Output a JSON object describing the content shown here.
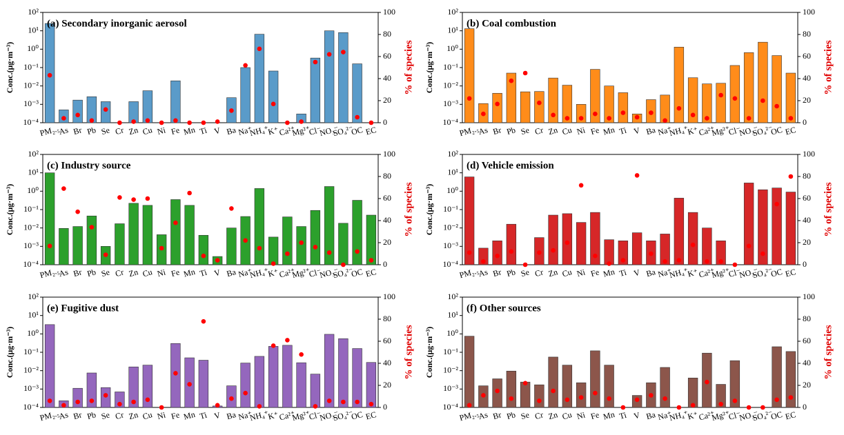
{
  "chart_data": [
    {
      "type": "bar",
      "title": "(a) Secondary inorganic aerosol",
      "y_label": "Conc.(μg·m⁻³)",
      "y2_label": "% of species",
      "log_scale": true,
      "color": "#5a9bc9",
      "dot_color": "#ff0000",
      "categories": [
        "PM₂.₅",
        "As",
        "Br",
        "Pb",
        "Se",
        "Cr",
        "Zn",
        "Cu",
        "Ni",
        "Fe",
        "Mn",
        "Ti",
        "V",
        "Ba",
        "Na⁺",
        "NH₄⁺",
        "K⁺",
        "Ca²⁺",
        "Mg²⁺",
        "Cl⁻",
        "NO₃⁻",
        "SO₄²⁻",
        "OC",
        "EC"
      ],
      "values": [
        25,
        0.0005,
        0.0017,
        0.0026,
        0.0014,
        null,
        0.0014,
        0.0055,
        null,
        0.019,
        null,
        null,
        null,
        0.0023,
        0.1,
        6.5,
        0.065,
        null,
        0.0003,
        0.33,
        10,
        8,
        0.16,
        null
      ],
      "values_y2": [
        43,
        4,
        7,
        2,
        12,
        0,
        1,
        2,
        0,
        2,
        0,
        0,
        1,
        11,
        52,
        67,
        17,
        0,
        1,
        55,
        62,
        64,
        5,
        0
      ],
      "ylim": [
        0.0001,
        100
      ],
      "yticks": [
        {
          "value": 0.0001,
          "label": "10⁻⁴"
        },
        {
          "value": 0.001,
          "label": "10⁻³"
        },
        {
          "value": 0.01,
          "label": "10⁻²"
        },
        {
          "value": 0.1,
          "label": "10⁻¹"
        },
        {
          "value": 1,
          "label": "10⁰"
        },
        {
          "value": 10,
          "label": "10¹"
        },
        {
          "value": 100,
          "label": "10²"
        }
      ],
      "y2lim": [
        0,
        100
      ],
      "y2ticks": [
        0,
        20,
        40,
        60,
        80,
        100
      ]
    },
    {
      "type": "bar",
      "title": "(b) Coal combustion",
      "y_label": "Conc.(μg·m⁻³)",
      "y2_label": "% of species",
      "log_scale": true,
      "color": "#ff8c1a",
      "dot_color": "#ff0000",
      "categories": [
        "PM₂.₅",
        "As",
        "Br",
        "Pb",
        "Se",
        "Cr",
        "Zn",
        "Cu",
        "Ni",
        "Fe",
        "Mn",
        "Ti",
        "V",
        "Ba",
        "Na⁺",
        "NH₄⁺",
        "K⁺",
        "Ca²⁺",
        "Mg²⁺",
        "Cl⁻",
        "NO₃⁻",
        "SO₄²⁻",
        "OC",
        "EC"
      ],
      "values": [
        13,
        0.0011,
        0.004,
        0.05,
        0.0048,
        0.005,
        0.027,
        0.011,
        0.001,
        0.08,
        0.01,
        0.0043,
        0.0003,
        0.0018,
        0.0032,
        1.3,
        0.028,
        0.013,
        0.014,
        0.13,
        0.65,
        2.4,
        0.45,
        0.05
      ],
      "values_y2": [
        22,
        8,
        17,
        38,
        45,
        18,
        7,
        4,
        4,
        8,
        4,
        9,
        5,
        9,
        2,
        13,
        7,
        4,
        25,
        22,
        4,
        20,
        15,
        4
      ],
      "ylim": [
        0.0001,
        100
      ],
      "yticks": [
        {
          "value": 0.0001,
          "label": "10⁻⁴"
        },
        {
          "value": 0.001,
          "label": "10⁻³"
        },
        {
          "value": 0.01,
          "label": "10⁻²"
        },
        {
          "value": 0.1,
          "label": "10⁻¹"
        },
        {
          "value": 1,
          "label": "10⁰"
        },
        {
          "value": 10,
          "label": "10¹"
        },
        {
          "value": 100,
          "label": "10²"
        }
      ],
      "y2lim": [
        0,
        100
      ],
      "y2ticks": [
        0,
        20,
        40,
        60,
        80,
        100
      ]
    },
    {
      "type": "bar",
      "title": "(c) Industry source",
      "y_label": "Conc.(μg·m⁻³)",
      "y2_label": "% of species",
      "log_scale": true,
      "color": "#2ca02c",
      "dot_color": "#ff0000",
      "categories": [
        "PM₂.₅",
        "As",
        "Br",
        "Pb",
        "Se",
        "Cr",
        "Zn",
        "Cu",
        "Ni",
        "Fe",
        "Mn",
        "Ti",
        "V",
        "Ba",
        "Na⁺",
        "NH₄⁺",
        "K⁺",
        "Ca²⁺",
        "Mg²⁺",
        "Cl⁻",
        "NO₃⁻",
        "SO₄²⁻",
        "OC",
        "EC"
      ],
      "values": [
        10,
        0.0095,
        0.012,
        0.045,
        0.001,
        0.017,
        0.22,
        0.17,
        0.0043,
        0.35,
        0.17,
        0.004,
        0.00028,
        0.01,
        0.042,
        1.4,
        0.0032,
        0.04,
        0.012,
        0.09,
        1.8,
        0.018,
        0.32,
        0.05
      ],
      "values_y2": [
        17,
        69,
        48,
        34,
        9,
        61,
        59,
        60,
        15,
        38,
        65,
        8,
        4,
        51,
        22,
        15,
        1,
        10,
        20,
        16,
        11,
        0,
        12,
        4
      ],
      "ylim": [
        0.0001,
        100
      ],
      "yticks": [
        {
          "value": 0.0001,
          "label": "10⁻⁴"
        },
        {
          "value": 0.001,
          "label": "10⁻³"
        },
        {
          "value": 0.01,
          "label": "10⁻²"
        },
        {
          "value": 0.1,
          "label": "10⁻¹"
        },
        {
          "value": 1,
          "label": "10⁰"
        },
        {
          "value": 10,
          "label": "10¹"
        },
        {
          "value": 100,
          "label": "10²"
        }
      ],
      "y2lim": [
        0,
        100
      ],
      "y2ticks": [
        0,
        20,
        40,
        60,
        80,
        100
      ]
    },
    {
      "type": "bar",
      "title": "(d) Vehicle emission",
      "y_label": "Conc.(μg·m⁻³)",
      "y2_label": "% of species",
      "log_scale": true,
      "color": "#d62728",
      "dot_color": "#ff0000",
      "categories": [
        "PM₂.₅",
        "As",
        "Br",
        "Pb",
        "Se",
        "Cr",
        "Zn",
        "Cu",
        "Ni",
        "Fe",
        "Mn",
        "Ti",
        "V",
        "Ba",
        "Na⁺",
        "NH₄⁺",
        "K⁺",
        "Ca²⁺",
        "Mg²⁺",
        "Cl⁻",
        "NO₃⁻",
        "SO₄²⁻",
        "OC",
        "EC"
      ],
      "values": [
        6,
        0.0008,
        0.002,
        0.016,
        null,
        0.003,
        0.05,
        0.06,
        0.02,
        0.07,
        0.0023,
        0.002,
        0.0055,
        0.002,
        0.0047,
        0.42,
        0.07,
        0.01,
        0.002,
        null,
        2.8,
        1.2,
        1.5,
        0.9
      ],
      "values_y2": [
        11,
        3,
        8,
        12,
        0,
        11,
        13,
        20,
        72,
        8,
        1,
        4,
        81,
        10,
        3,
        4,
        18,
        3,
        3,
        0,
        17,
        10,
        55,
        80
      ],
      "ylim": [
        0.0001,
        100
      ],
      "yticks": [
        {
          "value": 0.0001,
          "label": "10⁻⁴"
        },
        {
          "value": 0.001,
          "label": "10⁻³"
        },
        {
          "value": 0.01,
          "label": "10⁻²"
        },
        {
          "value": 0.1,
          "label": "10⁻¹"
        },
        {
          "value": 1,
          "label": "10⁰"
        },
        {
          "value": 10,
          "label": "10¹"
        },
        {
          "value": 100,
          "label": "10²"
        }
      ],
      "y2lim": [
        0,
        100
      ],
      "y2ticks": [
        0,
        20,
        40,
        60,
        80,
        100
      ]
    },
    {
      "type": "bar",
      "title": "(e) Fugitive dust",
      "y_label": "Conc.(μg·m⁻³)",
      "y2_label": "% of species",
      "log_scale": true,
      "color": "#9467bd",
      "dot_color": "#ff0000",
      "categories": [
        "PM₂.₅",
        "As",
        "Br",
        "Pb",
        "Se",
        "Cr",
        "Zn",
        "Cu",
        "Ni",
        "Fe",
        "Mn",
        "Ti",
        "V",
        "Ba",
        "Na⁺",
        "NH₄⁺",
        "K⁺",
        "Ca²⁺",
        "Mg²⁺",
        "Cl⁻",
        "NO₃⁻",
        "SO₄²⁻",
        "OC",
        "EC"
      ],
      "values": [
        3.2,
        0.00023,
        0.0011,
        0.0075,
        0.0012,
        0.0007,
        0.016,
        0.02,
        null,
        0.3,
        0.05,
        0.037,
        0.00012,
        0.0015,
        0.026,
        0.06,
        0.21,
        0.24,
        0.027,
        0.0065,
        0.95,
        0.55,
        0.16,
        0.028
      ],
      "values_y2": [
        6,
        2,
        5,
        6,
        11,
        3,
        5,
        7,
        0,
        31,
        21,
        78,
        2,
        8,
        13,
        1,
        56,
        61,
        48,
        1,
        6,
        5,
        5,
        3
      ],
      "ylim": [
        0.0001,
        100
      ],
      "yticks": [
        {
          "value": 0.0001,
          "label": "10⁻⁴"
        },
        {
          "value": 0.001,
          "label": "10⁻³"
        },
        {
          "value": 0.01,
          "label": "10⁻²"
        },
        {
          "value": 0.1,
          "label": "10⁻¹"
        },
        {
          "value": 1,
          "label": "10⁰"
        },
        {
          "value": 10,
          "label": "10¹"
        },
        {
          "value": 100,
          "label": "10²"
        }
      ],
      "y2lim": [
        0,
        100
      ],
      "y2ticks": [
        0,
        20,
        40,
        60,
        80,
        100
      ]
    },
    {
      "type": "bar",
      "title": "(f) Other sources",
      "y_label": "Conc.(μg·m⁻³)",
      "y2_label": "% of species",
      "log_scale": true,
      "color": "#8c564b",
      "dot_color": "#ff0000",
      "categories": [
        "PM₂.₅",
        "As",
        "Br",
        "Pb",
        "Se",
        "Cr",
        "Zn",
        "Cu",
        "Ni",
        "Fe",
        "Mn",
        "Ti",
        "V",
        "Ba",
        "Na⁺",
        "NH₄⁺",
        "K⁺",
        "Ca²⁺",
        "Mg²⁺",
        "Cl⁻",
        "NO₃⁻",
        "SO₄²⁻",
        "OC",
        "EC"
      ],
      "values": [
        0.75,
        0.0015,
        0.0036,
        0.0095,
        0.0024,
        0.0017,
        0.055,
        0.02,
        0.0022,
        0.12,
        0.02,
        null,
        0.00045,
        0.0022,
        0.015,
        null,
        0.004,
        0.09,
        0.0018,
        0.035,
        null,
        null,
        0.2,
        0.11
      ],
      "values_y2": [
        2,
        11,
        15,
        8,
        22,
        6,
        15,
        7,
        9,
        13,
        8,
        0,
        7,
        11,
        8,
        0,
        2,
        23,
        3,
        6,
        0,
        0,
        7,
        9
      ],
      "ylim": [
        0.0001,
        100
      ],
      "yticks": [
        {
          "value": 0.0001,
          "label": "10⁻⁴"
        },
        {
          "value": 0.001,
          "label": "10⁻³"
        },
        {
          "value": 0.01,
          "label": "10⁻²"
        },
        {
          "value": 0.1,
          "label": "10⁻¹"
        },
        {
          "value": 1,
          "label": "10⁰"
        },
        {
          "value": 10,
          "label": "10¹"
        },
        {
          "value": 100,
          "label": "10²"
        }
      ],
      "y2lim": [
        0,
        100
      ],
      "y2ticks": [
        0,
        20,
        40,
        60,
        80,
        100
      ]
    }
  ]
}
